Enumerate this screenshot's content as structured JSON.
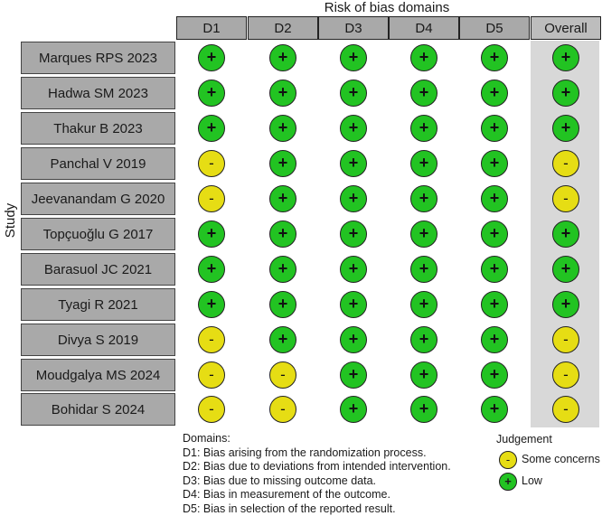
{
  "chart_data": {
    "type": "table",
    "title": "Risk of bias domains",
    "ylabel": "Study",
    "columns": [
      "D1",
      "D2",
      "D3",
      "D4",
      "D5",
      "Overall"
    ],
    "rows": [
      {
        "study": "Marques RPS 2023",
        "judgements": [
          "+",
          "+",
          "+",
          "+",
          "+",
          "+"
        ]
      },
      {
        "study": "Hadwa SM 2023",
        "judgements": [
          "+",
          "+",
          "+",
          "+",
          "+",
          "+"
        ]
      },
      {
        "study": "Thakur B 2023",
        "judgements": [
          "+",
          "+",
          "+",
          "+",
          "+",
          "+"
        ]
      },
      {
        "study": "Panchal V 2019",
        "judgements": [
          "-",
          "+",
          "+",
          "+",
          "+",
          "-"
        ]
      },
      {
        "study": "Jeevanandam G 2020",
        "judgements": [
          "-",
          "+",
          "+",
          "+",
          "+",
          "-"
        ]
      },
      {
        "study": "Topçuoğlu G 2017",
        "judgements": [
          "+",
          "+",
          "+",
          "+",
          "+",
          "+"
        ]
      },
      {
        "study": "Barasuol JC 2021",
        "judgements": [
          "+",
          "+",
          "+",
          "+",
          "+",
          "+"
        ]
      },
      {
        "study": "Tyagi R 2021",
        "judgements": [
          "+",
          "+",
          "+",
          "+",
          "+",
          "+"
        ]
      },
      {
        "study": "Divya S 2019",
        "judgements": [
          "-",
          "+",
          "+",
          "+",
          "+",
          "-"
        ]
      },
      {
        "study": "Moudgalya MS 2024",
        "judgements": [
          "-",
          "-",
          "+",
          "+",
          "+",
          "-"
        ]
      },
      {
        "study": "Bohidar S 2024",
        "judgements": [
          "-",
          "-",
          "+",
          "+",
          "+",
          "-"
        ]
      }
    ],
    "domains_title": "Domains:",
    "domains": [
      "D1: Bias arising from the randomization process.",
      "D2: Bias due to deviations from intended intervention.",
      "D3: Bias due to missing outcome data.",
      "D4: Bias in measurement of the outcome.",
      "D5: Bias in selection of the reported result."
    ],
    "legend": {
      "title": "Judgement",
      "items": [
        {
          "symbol": "-",
          "label": "Some concerns",
          "color": "#e6dd14"
        },
        {
          "symbol": "+",
          "label": "Low",
          "color": "#22c322"
        }
      ]
    },
    "colors": {
      "low": "#22c322",
      "some_concerns": "#e6dd14",
      "header": "#a9a9a9",
      "overall_band": "#d8d8d8"
    }
  }
}
